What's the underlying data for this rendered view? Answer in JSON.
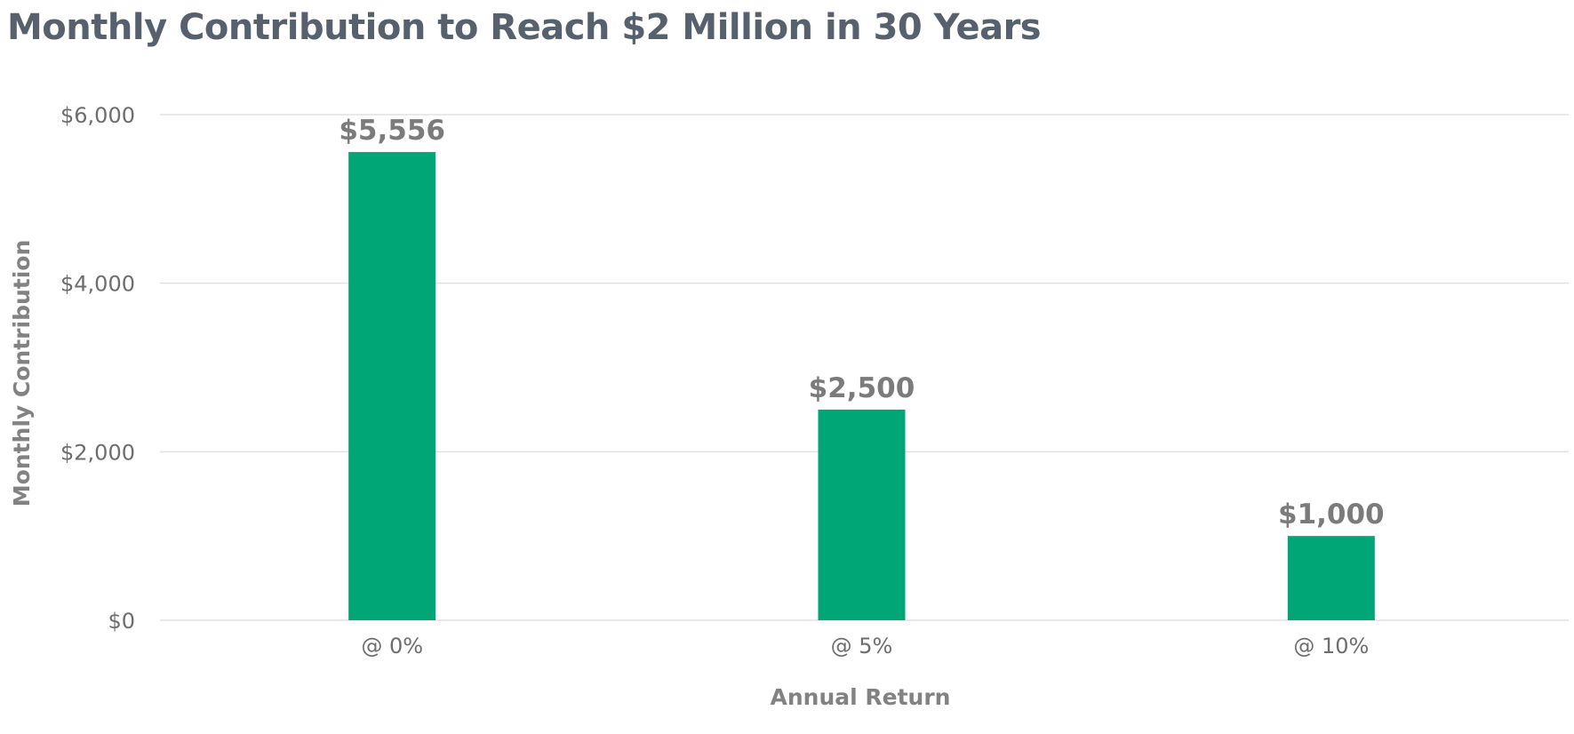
{
  "chart_data": {
    "type": "bar",
    "title": "Monthly Contribution to Reach $2 Million in 30 Years",
    "xlabel": "Annual Return",
    "ylabel": "Monthly Contribution",
    "categories": [
      "@ 0%",
      "@ 5%",
      "@ 10%"
    ],
    "values": [
      5556,
      2500,
      1000
    ],
    "data_labels": [
      "$5,556",
      "$2,500",
      "$1,000"
    ],
    "ylim": [
      0,
      6000
    ],
    "yticks": [
      0,
      2000,
      4000,
      6000
    ],
    "ytick_labels": [
      "$0",
      "$2,000",
      "$4,000",
      "$6,000"
    ],
    "grid": true,
    "legend": "none",
    "bar_color": "#00a676"
  }
}
